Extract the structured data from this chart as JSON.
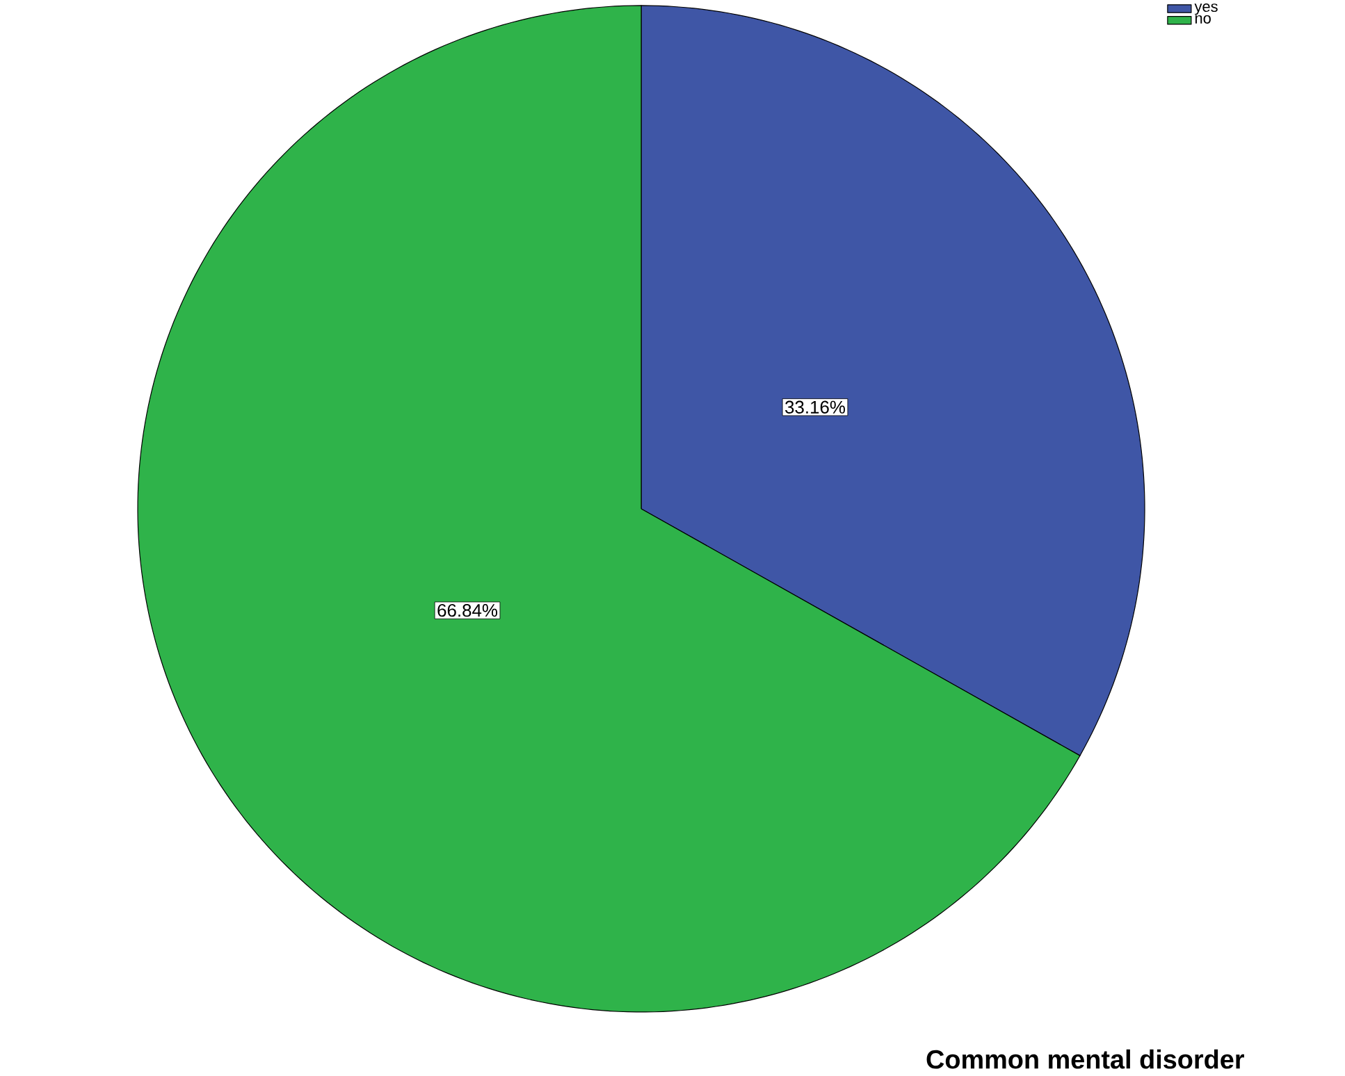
{
  "chart_data": {
    "type": "pie",
    "title": "Common mental disorder",
    "categories": [
      "yes",
      "no"
    ],
    "values": [
      33.16,
      66.84
    ],
    "value_labels": [
      "33.16%",
      "66.84%"
    ],
    "colors": [
      "#3f56a6",
      "#2fb34a"
    ],
    "legend": "top right"
  }
}
